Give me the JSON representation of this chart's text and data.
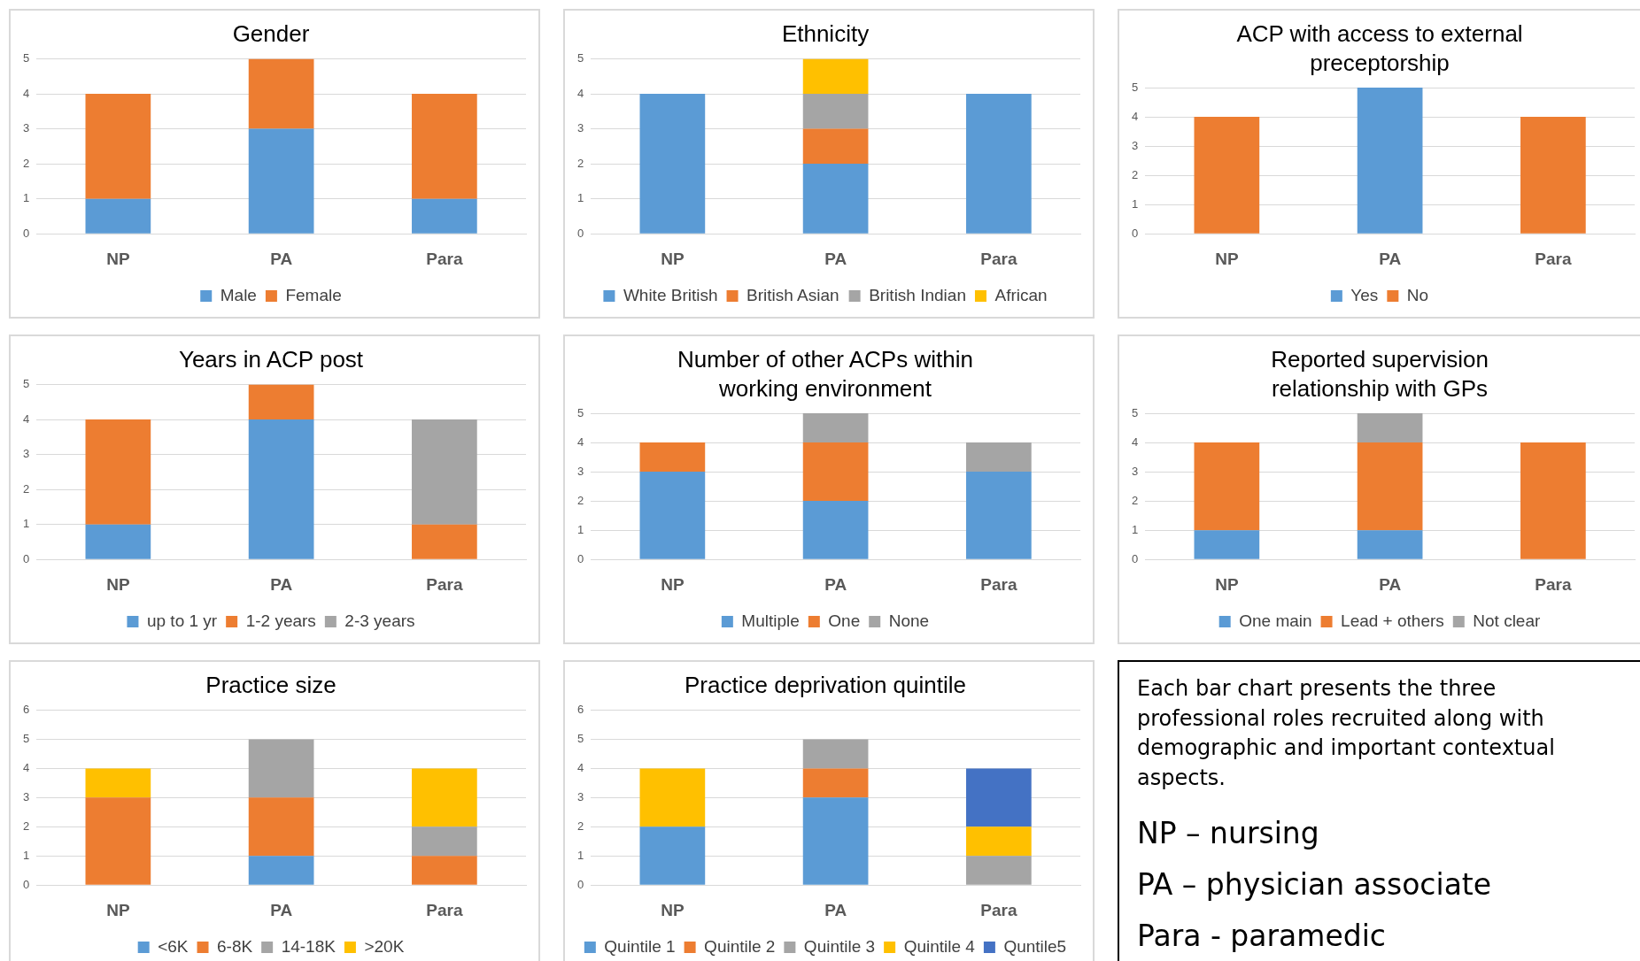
{
  "chart_data": [
    {
      "type": "bar",
      "title": "Gender",
      "categories": [
        "NP",
        "PA",
        "Para"
      ],
      "stacked": true,
      "grid": "y",
      "legend": "bottom",
      "ylim": [
        0,
        5
      ],
      "yticks": [
        0,
        1,
        2,
        3,
        4,
        5
      ],
      "series": [
        {
          "name": "Male",
          "color": "#5b9bd5",
          "values": [
            1,
            3,
            1
          ]
        },
        {
          "name": "Female",
          "color": "#ed7d31",
          "values": [
            3,
            2,
            3
          ]
        }
      ]
    },
    {
      "type": "bar",
      "title": "Ethnicity",
      "categories": [
        "NP",
        "PA",
        "Para"
      ],
      "stacked": true,
      "grid": "y",
      "legend": "bottom",
      "ylim": [
        0,
        5
      ],
      "yticks": [
        0,
        1,
        2,
        3,
        4,
        5
      ],
      "series": [
        {
          "name": "White British",
          "color": "#5b9bd5",
          "values": [
            4,
            2,
            4
          ]
        },
        {
          "name": "British Asian",
          "color": "#ed7d31",
          "values": [
            0,
            1,
            0
          ]
        },
        {
          "name": "British Indian",
          "color": "#a5a5a5",
          "values": [
            0,
            1,
            0
          ]
        },
        {
          "name": "African",
          "color": "#ffc000",
          "values": [
            0,
            1,
            0
          ]
        }
      ]
    },
    {
      "type": "bar",
      "title": "ACP with access to external preceptorship",
      "categories": [
        "NP",
        "PA",
        "Para"
      ],
      "stacked": true,
      "grid": "y",
      "legend": "bottom",
      "ylim": [
        0,
        5
      ],
      "yticks": [
        0,
        1,
        2,
        3,
        4,
        5
      ],
      "series": [
        {
          "name": "Yes",
          "color": "#5b9bd5",
          "values": [
            0,
            5,
            0
          ]
        },
        {
          "name": "No",
          "color": "#ed7d31",
          "values": [
            4,
            0,
            4
          ]
        }
      ]
    },
    {
      "type": "bar",
      "title": "Years in ACP post",
      "categories": [
        "NP",
        "PA",
        "Para"
      ],
      "stacked": true,
      "grid": "y",
      "legend": "bottom",
      "ylim": [
        0,
        5
      ],
      "yticks": [
        0,
        1,
        2,
        3,
        4,
        5
      ],
      "series": [
        {
          "name": "up to 1 yr",
          "color": "#5b9bd5",
          "values": [
            1,
            4,
            0
          ]
        },
        {
          "name": "1-2 years",
          "color": "#ed7d31",
          "values": [
            3,
            1,
            1
          ]
        },
        {
          "name": "2-3 years",
          "color": "#a5a5a5",
          "values": [
            0,
            0,
            3
          ]
        }
      ]
    },
    {
      "type": "bar",
      "title": "Number of other ACPs within working environment",
      "categories": [
        "NP",
        "PA",
        "Para"
      ],
      "stacked": true,
      "grid": "y",
      "legend": "bottom",
      "ylim": [
        0,
        5
      ],
      "yticks": [
        0,
        1,
        2,
        3,
        4,
        5
      ],
      "series": [
        {
          "name": "Multiple",
          "color": "#5b9bd5",
          "values": [
            3,
            2,
            3
          ]
        },
        {
          "name": "One",
          "color": "#ed7d31",
          "values": [
            1,
            2,
            0
          ]
        },
        {
          "name": "None",
          "color": "#a5a5a5",
          "values": [
            0,
            1,
            1
          ]
        }
      ]
    },
    {
      "type": "bar",
      "title": "Reported supervision relationship with GPs",
      "categories": [
        "NP",
        "PA",
        "Para"
      ],
      "stacked": true,
      "grid": "y",
      "legend": "bottom",
      "ylim": [
        0,
        5
      ],
      "yticks": [
        0,
        1,
        2,
        3,
        4,
        5
      ],
      "series": [
        {
          "name": "One main",
          "color": "#5b9bd5",
          "values": [
            1,
            1,
            0
          ]
        },
        {
          "name": "Lead + others",
          "color": "#ed7d31",
          "values": [
            3,
            3,
            4
          ]
        },
        {
          "name": "Not clear",
          "color": "#a5a5a5",
          "values": [
            0,
            1,
            0
          ]
        }
      ]
    },
    {
      "type": "bar",
      "title": "Practice size",
      "categories": [
        "NP",
        "PA",
        "Para"
      ],
      "stacked": true,
      "grid": "y",
      "legend": "bottom",
      "ylim": [
        0,
        6
      ],
      "yticks": [
        0,
        1,
        2,
        3,
        4,
        5,
        6
      ],
      "series": [
        {
          "name": "<6K",
          "color": "#5b9bd5",
          "values": [
            0,
            1,
            0
          ]
        },
        {
          "name": "6-8K",
          "color": "#ed7d31",
          "values": [
            3,
            2,
            1
          ]
        },
        {
          "name": "14-18K",
          "color": "#a5a5a5",
          "values": [
            0,
            2,
            1
          ]
        },
        {
          "name": ">20K",
          "color": "#ffc000",
          "values": [
            1,
            0,
            2
          ]
        }
      ]
    },
    {
      "type": "bar",
      "title": "Practice deprivation quintile",
      "categories": [
        "NP",
        "PA",
        "Para"
      ],
      "stacked": true,
      "grid": "y",
      "legend": "bottom",
      "ylim": [
        0,
        6
      ],
      "yticks": [
        0,
        1,
        2,
        3,
        4,
        5,
        6
      ],
      "series": [
        {
          "name": "Quintile 1",
          "color": "#5b9bd5",
          "values": [
            2,
            3,
            0
          ]
        },
        {
          "name": "Quintile 2",
          "color": "#ed7d31",
          "values": [
            0,
            1,
            0
          ]
        },
        {
          "name": "Quintile 3",
          "color": "#a5a5a5",
          "values": [
            0,
            1,
            1
          ]
        },
        {
          "name": "Quintile 4",
          "color": "#ffc000",
          "values": [
            2,
            0,
            1
          ]
        },
        {
          "name": "Quntile5",
          "color": "#4472c4",
          "values": [
            0,
            0,
            2
          ]
        }
      ]
    },
    {
      "type": "other",
      "annotations": [
        "Each bar chart presents the three professional roles recruited along with demographic and important contextual aspects.",
        "NP – nursing",
        "PA – physician associate",
        "Para - paramedic"
      ]
    }
  ]
}
